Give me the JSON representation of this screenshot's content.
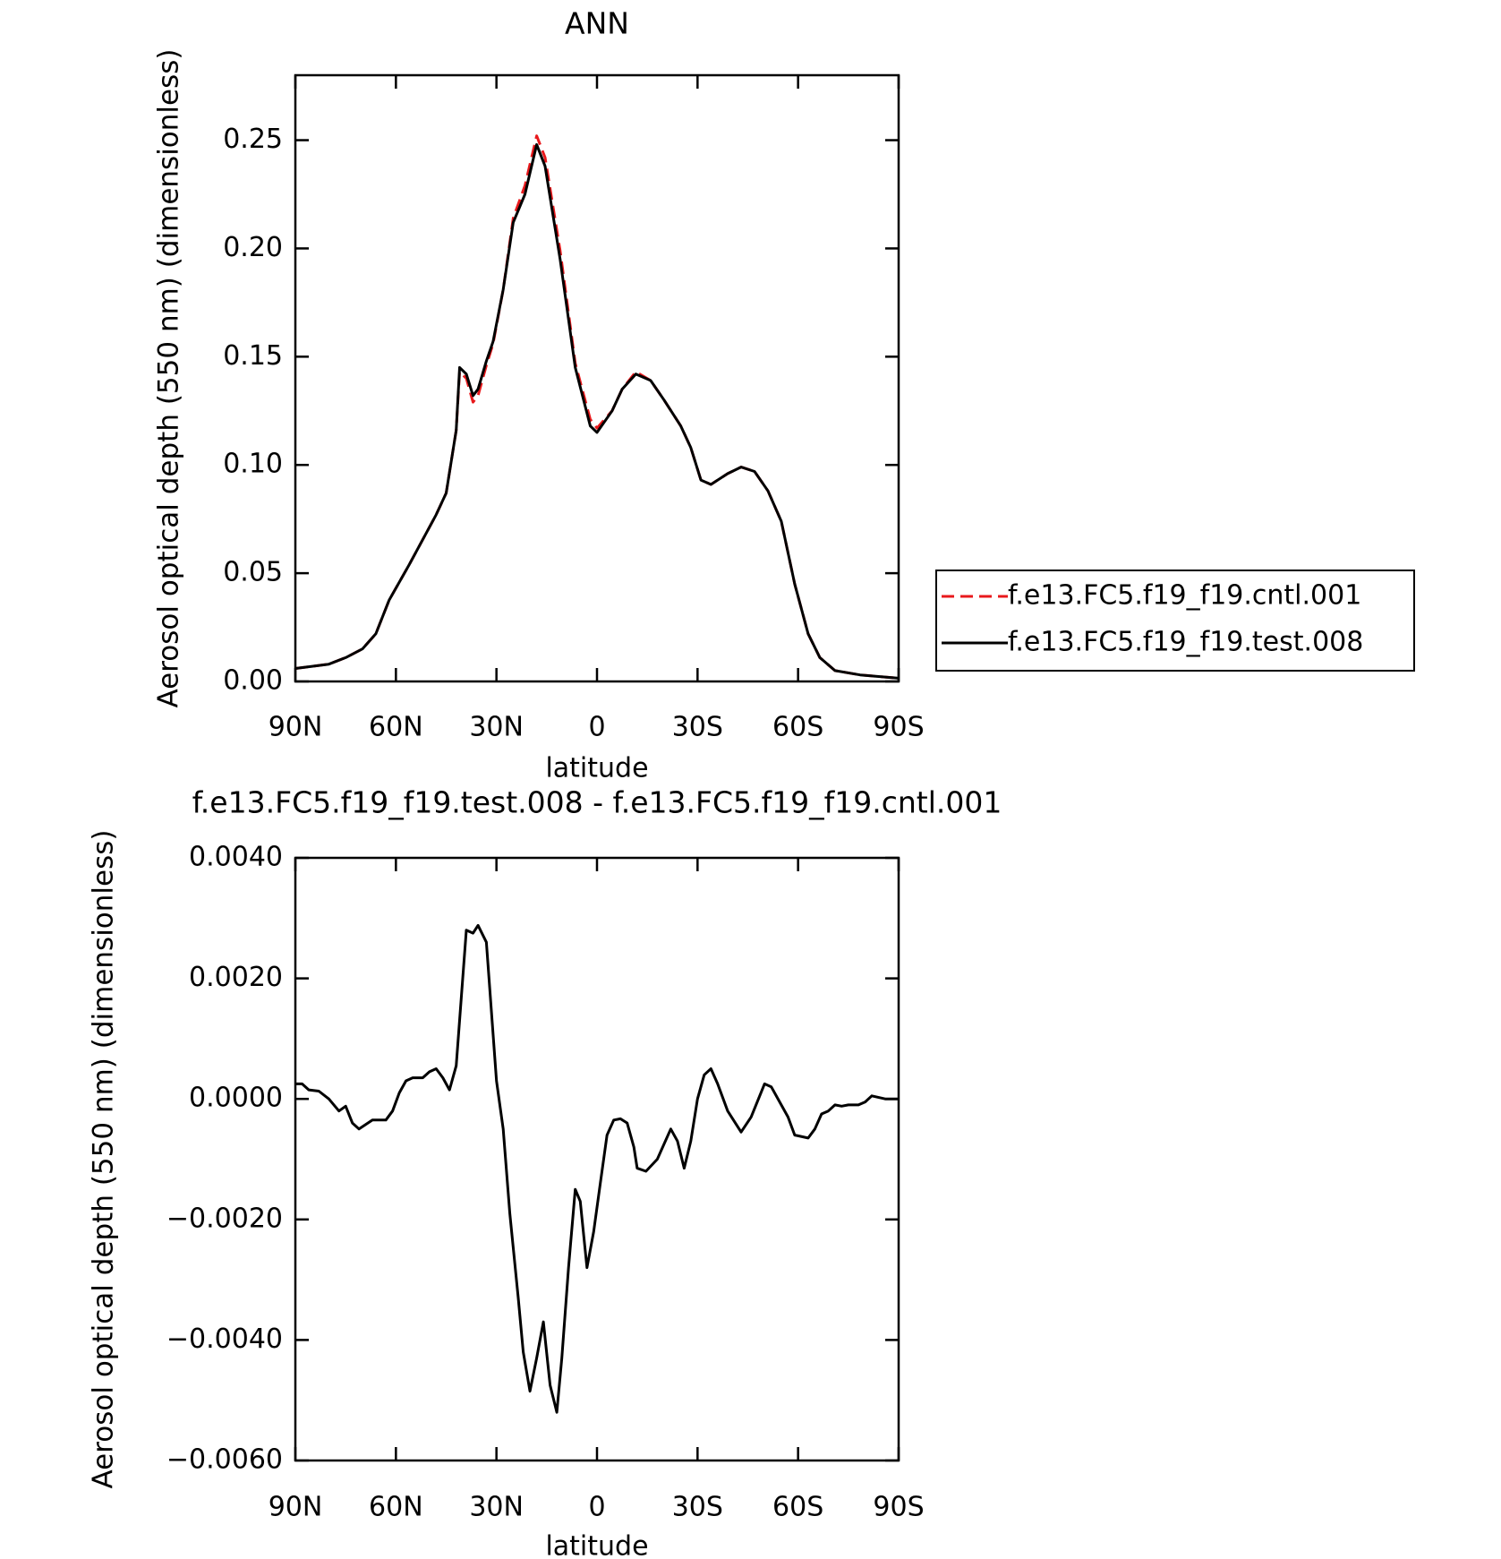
{
  "chart_data": [
    {
      "type": "line",
      "title": "ANN",
      "xlabel": "latitude",
      "ylabel": "Aerosol optical depth (550 nm) (dimensionless)",
      "x": [
        90,
        85,
        80,
        75,
        70,
        66,
        62,
        56,
        48,
        45,
        42,
        41,
        39,
        37,
        35.5,
        33,
        31,
        28,
        25,
        21.5,
        18,
        15.5,
        11,
        6.5,
        2,
        0,
        -4.5,
        -7.5,
        -11.6,
        -16,
        -20,
        -25,
        -28,
        -31,
        -34,
        -39,
        -43,
        -47,
        -51,
        -55,
        -59,
        -63,
        -66.5,
        -71,
        -78.5,
        -90
      ],
      "series": [
        {
          "name": "f.e13.FC5.f19_f19.cntl.001",
          "color": "#e8191c",
          "dash": true,
          "values": [
            0.006,
            0.007,
            0.008,
            0.011,
            0.015,
            0.022,
            0.0376,
            0.054,
            0.077,
            0.087,
            0.116,
            0.143,
            0.14,
            0.129,
            0.132,
            0.146,
            0.156,
            0.181,
            0.214,
            0.229,
            0.252,
            0.242,
            0.199,
            0.147,
            0.121,
            0.117,
            0.125,
            0.135,
            0.143,
            0.139,
            0.13,
            0.118,
            0.108,
            0.093,
            0.091,
            0.096,
            0.099,
            0.097,
            0.088,
            0.074,
            0.045,
            0.022,
            0.011,
            0.005,
            0.003,
            0.0015
          ]
        },
        {
          "name": "f.e13.FC5.f19_f19.test.008",
          "color": "#000000",
          "dash": false,
          "values": [
            0.006,
            0.007,
            0.008,
            0.011,
            0.015,
            0.022,
            0.0376,
            0.054,
            0.077,
            0.087,
            0.116,
            0.145,
            0.142,
            0.132,
            0.135,
            0.148,
            0.157,
            0.181,
            0.212,
            0.225,
            0.248,
            0.238,
            0.195,
            0.145,
            0.118,
            0.115,
            0.125,
            0.135,
            0.142,
            0.139,
            0.13,
            0.118,
            0.108,
            0.093,
            0.091,
            0.096,
            0.099,
            0.097,
            0.088,
            0.074,
            0.045,
            0.022,
            0.011,
            0.005,
            0.003,
            0.0015
          ]
        }
      ],
      "xlim": [
        90,
        -90
      ],
      "xticks": [
        {
          "value": 90,
          "label": "90N"
        },
        {
          "value": 60,
          "label": "60N"
        },
        {
          "value": 30,
          "label": "30N"
        },
        0,
        {
          "value": -30,
          "label": "30S"
        },
        {
          "value": -60,
          "label": "60S"
        },
        {
          "value": -90,
          "label": "90S"
        }
      ],
      "ylim": [
        0,
        0.28
      ],
      "yticks": [
        {
          "value": 0,
          "label": "0.00"
        },
        0.05,
        {
          "value": 0.1,
          "label": "0.10"
        },
        0.15,
        {
          "value": 0.2,
          "label": "0.20"
        },
        0.25
      ],
      "legend": "right"
    },
    {
      "type": "line",
      "title": "f.e13.FC5.f19_f19.test.008 - f.e13.FC5.f19_f19.cntl.001",
      "xlabel": "latitude",
      "ylabel": "Aerosol optical depth (550 nm) (dimensionless)",
      "x": [
        90,
        88,
        86,
        83,
        80,
        77,
        75,
        73,
        71,
        67,
        63,
        61,
        59,
        57,
        55,
        52,
        50,
        48,
        46,
        44,
        42,
        39,
        37,
        35.5,
        33,
        30,
        28,
        26,
        23.5,
        22,
        20,
        18,
        16,
        14,
        12,
        10.5,
        8.5,
        6.5,
        5,
        3,
        1,
        -1,
        -3,
        -5,
        -7,
        -9,
        -11,
        -12,
        -14.6,
        -18,
        -22,
        -24,
        -26,
        -28,
        -30,
        -32,
        -34,
        -36,
        -39,
        -43,
        -46,
        -50,
        -52,
        -55,
        -57,
        -59,
        -63,
        -65,
        -67,
        -69,
        -71,
        -73,
        -75,
        -78,
        -80,
        -82,
        -86,
        -90
      ],
      "series": [
        {
          "color": "#000000",
          "dash": false,
          "values": [
            0.00025,
            0.00025,
            0.00015,
            0.00013,
            0.0,
            -0.0002,
            -0.00012,
            -0.0004,
            -0.0005,
            -0.00035,
            -0.00035,
            -0.0002,
            0.0001,
            0.0003,
            0.00035,
            0.00035,
            0.00045,
            0.0005,
            0.00035,
            0.00015,
            0.00055,
            0.0028,
            0.00275,
            0.00288,
            0.0026,
            0.0003,
            -0.0005,
            -0.0019,
            -0.0033,
            -0.0042,
            -0.00485,
            -0.0043,
            -0.0037,
            -0.00475,
            -0.0052,
            -0.0043,
            -0.0028,
            -0.0015,
            -0.0017,
            -0.0028,
            -0.0022,
            -0.0014,
            -0.0006,
            -0.00035,
            -0.00033,
            -0.0004,
            -0.0008,
            -0.00115,
            -0.0012,
            -0.001,
            -0.0005,
            -0.0007,
            -0.00115,
            -0.0007,
            0.0,
            0.0004,
            0.0005,
            0.00025,
            -0.0002,
            -0.00055,
            -0.0003,
            0.00025,
            0.0002,
            -0.0001,
            -0.0003,
            -0.0006,
            -0.00065,
            -0.0005,
            -0.00025,
            -0.0002,
            -0.0001,
            -0.00012,
            -0.0001,
            -0.0001,
            -5e-05,
            5e-05,
            0.0,
            0.0
          ]
        }
      ],
      "xlim": [
        90,
        -90
      ],
      "xticks": [
        {
          "value": 90,
          "label": "90N"
        },
        {
          "value": 60,
          "label": "60N"
        },
        {
          "value": 30,
          "label": "30N"
        },
        0,
        {
          "value": -30,
          "label": "30S"
        },
        {
          "value": -60,
          "label": "60S"
        },
        {
          "value": -90,
          "label": "90S"
        }
      ],
      "ylim": [
        -0.006,
        0.004
      ],
      "yticks": [
        {
          "value": -0.006,
          "label": "−0.0060"
        },
        {
          "value": -0.004,
          "label": "−0.0040"
        },
        {
          "value": -0.002,
          "label": "−0.0020"
        },
        {
          "value": 0,
          "label": "0.0000"
        },
        {
          "value": 0.002,
          "label": "0.0020"
        },
        {
          "value": 0.004,
          "label": "0.0040"
        }
      ]
    }
  ]
}
